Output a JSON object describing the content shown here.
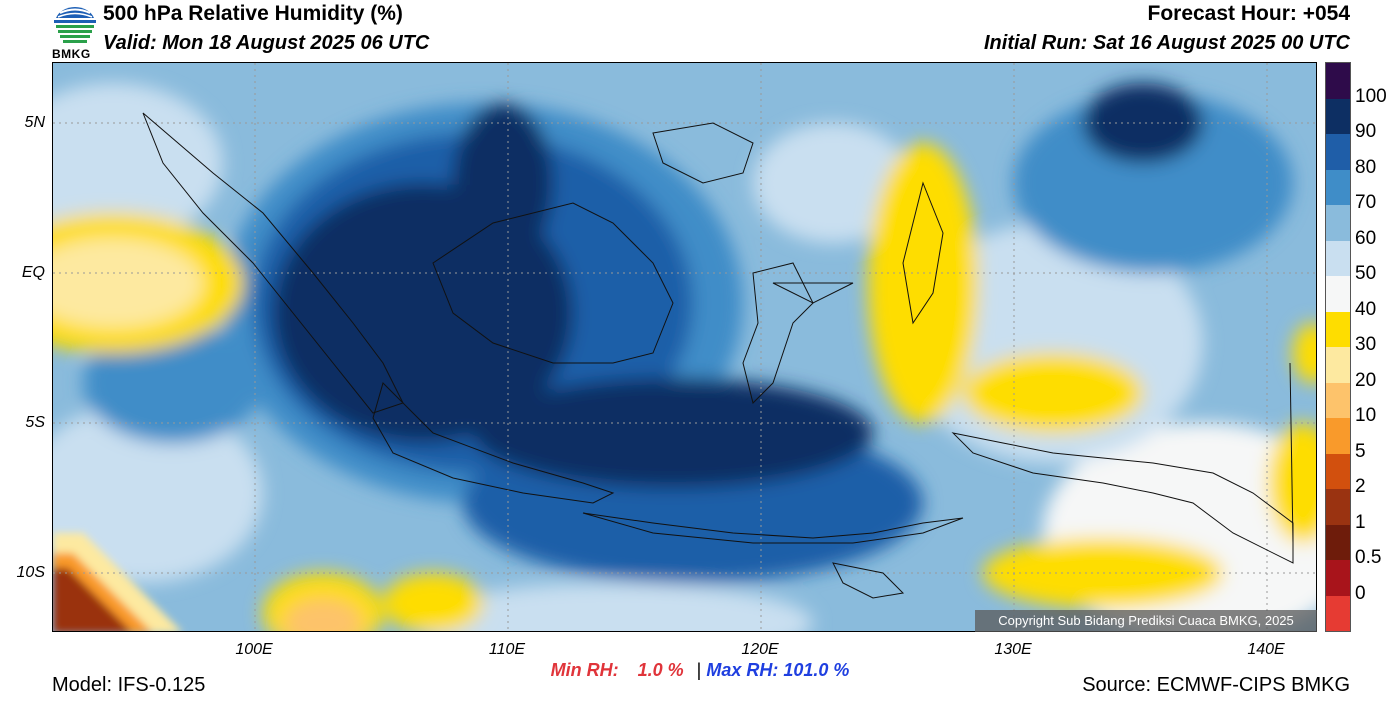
{
  "header": {
    "title": "500 hPa Relative Humidity (%)",
    "valid": "Valid: Mon 18 August 2025 06 UTC",
    "forecast_hour": "Forecast Hour: +054",
    "initial_run": "Initial Run: Sat 16 August 2025 00 UTC",
    "logo_text": "BMKG"
  },
  "axes": {
    "lat_labels": [
      "5N",
      "EQ",
      "5S",
      "10S"
    ],
    "lon_labels": [
      "100E",
      "110E",
      "120E",
      "130E",
      "140E"
    ]
  },
  "colorbar": {
    "labels": [
      "100",
      "90",
      "80",
      "70",
      "60",
      "50",
      "40",
      "30",
      "20",
      "10",
      "5",
      "2",
      "1",
      "0.5",
      "0"
    ],
    "colors": [
      "#2e0b4a",
      "#0d2f63",
      "#1f5ea8",
      "#3f8dc8",
      "#8abbdc",
      "#c9dff0",
      "#f6f7f7",
      "#fedd00",
      "#fde9a0",
      "#fdc36b",
      "#f99a2b",
      "#d2500e",
      "#9a3311",
      "#6e1c0b",
      "#a8141b",
      "#e63b33"
    ]
  },
  "stats": {
    "min_label": "Min RH:",
    "min_value": "1.0 %",
    "separator": "|",
    "max_label": "Max RH:",
    "max_value": "101.0 %",
    "min_color": "#e0343a",
    "max_color": "#1f3fe0"
  },
  "footer": {
    "model": "Model: IFS-0.125",
    "source": "Source: ECMWF-CIPS BMKG",
    "copyright": "Copyright Sub Bidang Prediksi Cuaca BMKG, 2025"
  }
}
